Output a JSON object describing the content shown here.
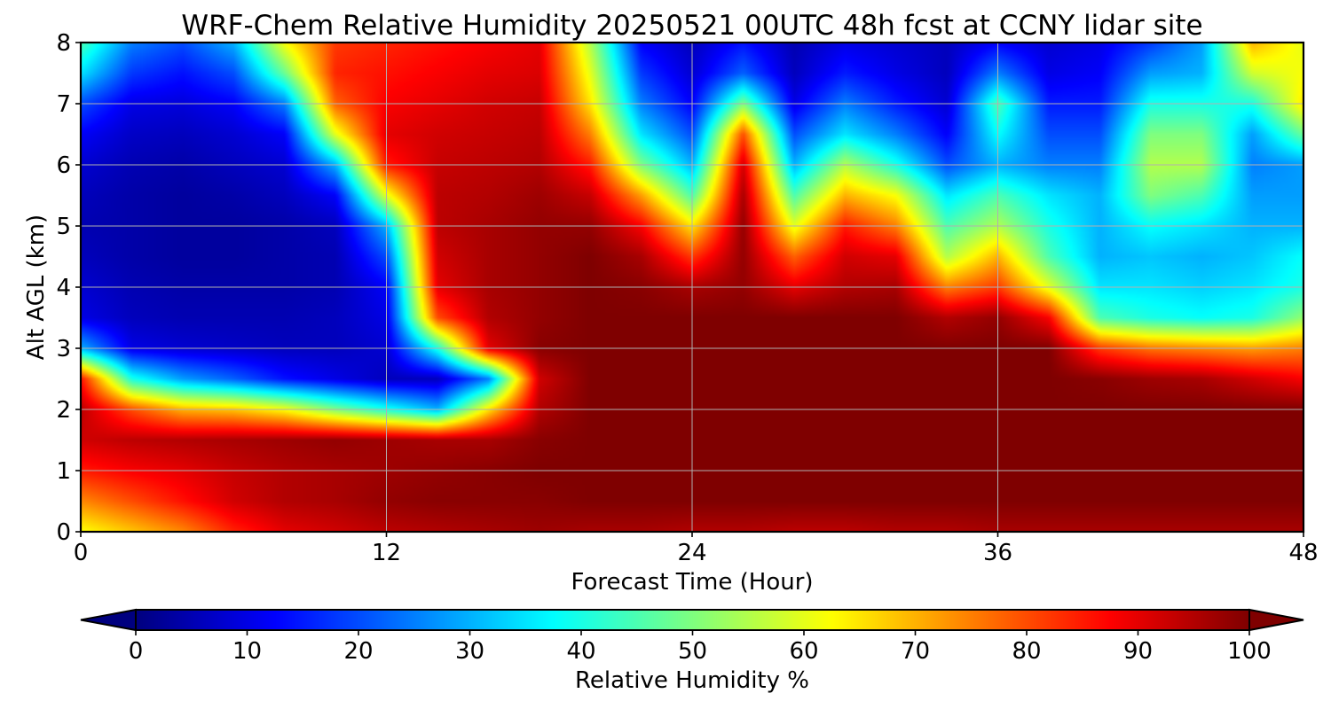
{
  "chart_data": {
    "type": "heatmap",
    "title": "WRF-Chem Relative Humidity 20250521 00UTC 48h fcst at CCNY lidar site",
    "xlabel": "Forecast Time (Hour)",
    "ylabel": "Alt AGL (km)",
    "xlim": [
      0,
      48
    ],
    "ylim": [
      0,
      8
    ],
    "x_ticks": [
      0,
      12,
      24,
      36,
      48
    ],
    "y_ticks": [
      0,
      1,
      2,
      3,
      4,
      5,
      6,
      7,
      8
    ],
    "grid": true,
    "x_hours": [
      0,
      2,
      4,
      6,
      8,
      10,
      12,
      14,
      16,
      18,
      20,
      22,
      24,
      26,
      28,
      30,
      32,
      34,
      36,
      38,
      40,
      42,
      44,
      46,
      48
    ],
    "y_km": [
      0,
      0.5,
      1,
      1.5,
      2,
      2.5,
      3,
      3.5,
      4,
      4.5,
      5,
      5.5,
      6,
      6.5,
      7,
      7.5,
      8
    ],
    "values": [
      [
        62,
        68,
        74,
        84,
        90,
        92,
        94,
        95,
        96,
        97,
        96,
        96,
        95,
        95,
        94,
        94,
        95,
        95,
        96,
        96,
        96,
        96,
        96,
        96,
        96
      ],
      [
        74,
        80,
        86,
        92,
        95,
        96,
        98,
        99,
        99,
        99,
        100,
        100,
        100,
        100,
        100,
        100,
        100,
        100,
        100,
        100,
        100,
        100,
        100,
        100,
        100
      ],
      [
        85,
        88,
        90,
        93,
        95,
        96,
        97,
        98,
        99,
        100,
        100,
        100,
        100,
        100,
        100,
        100,
        100,
        100,
        100,
        100,
        100,
        100,
        100,
        100,
        100
      ],
      [
        92,
        94,
        95,
        96,
        97,
        98,
        97,
        96,
        96,
        99,
        100,
        100,
        100,
        100,
        100,
        100,
        100,
        100,
        100,
        100,
        100,
        100,
        100,
        100,
        100
      ],
      [
        94,
        80,
        70,
        68,
        62,
        50,
        40,
        30,
        65,
        95,
        100,
        100,
        100,
        100,
        100,
        100,
        100,
        100,
        100,
        100,
        100,
        100,
        100,
        100,
        100
      ],
      [
        86,
        40,
        28,
        22,
        14,
        10,
        6,
        6,
        25,
        92,
        100,
        100,
        100,
        100,
        100,
        100,
        100,
        100,
        100,
        100,
        99,
        97,
        96,
        92,
        88
      ],
      [
        30,
        10,
        8,
        7,
        6,
        6,
        8,
        40,
        90,
        99,
        100,
        100,
        100,
        100,
        100,
        100,
        100,
        100,
        100,
        100,
        82,
        76,
        74,
        72,
        75
      ],
      [
        10,
        6,
        5,
        5,
        5,
        6,
        10,
        80,
        95,
        98,
        100,
        100,
        100,
        100,
        100,
        100,
        100,
        95,
        98,
        88,
        45,
        40,
        38,
        40,
        52
      ],
      [
        8,
        5,
        4,
        4,
        4,
        5,
        12,
        90,
        96,
        98,
        100,
        99,
        96,
        98,
        90,
        95,
        96,
        75,
        82,
        60,
        35,
        35,
        33,
        35,
        40
      ],
      [
        6,
        4,
        3,
        3,
        4,
        5,
        20,
        92,
        96,
        98,
        100,
        96,
        82,
        98,
        78,
        92,
        90,
        55,
        70,
        45,
        30,
        32,
        30,
        32,
        38
      ],
      [
        5,
        4,
        3,
        3,
        4,
        6,
        30,
        94,
        96,
        98,
        98,
        88,
        65,
        98,
        60,
        85,
        75,
        45,
        55,
        40,
        30,
        38,
        35,
        30,
        30
      ],
      [
        6,
        4,
        3,
        4,
        6,
        12,
        60,
        94,
        95,
        97,
        93,
        72,
        45,
        96,
        45,
        70,
        62,
        35,
        45,
        35,
        30,
        50,
        45,
        28,
        28
      ],
      [
        8,
        5,
        4,
        6,
        8,
        30,
        85,
        93,
        94,
        95,
        85,
        50,
        30,
        92,
        30,
        55,
        40,
        20,
        30,
        25,
        25,
        55,
        55,
        25,
        28
      ],
      [
        12,
        7,
        6,
        8,
        12,
        60,
        90,
        92,
        93,
        94,
        75,
        35,
        20,
        80,
        20,
        35,
        25,
        12,
        38,
        20,
        20,
        50,
        50,
        28,
        48
      ],
      [
        20,
        10,
        9,
        12,
        25,
        78,
        88,
        90,
        92,
        93,
        65,
        25,
        12,
        50,
        10,
        25,
        15,
        8,
        45,
        15,
        15,
        40,
        40,
        40,
        65
      ],
      [
        35,
        18,
        14,
        20,
        48,
        84,
        86,
        88,
        90,
        91,
        60,
        18,
        8,
        22,
        6,
        15,
        10,
        6,
        25,
        10,
        12,
        28,
        30,
        58,
        62
      ],
      [
        45,
        25,
        20,
        30,
        62,
        82,
        84,
        86,
        88,
        90,
        55,
        12,
        6,
        14,
        5,
        10,
        8,
        6,
        12,
        8,
        10,
        18,
        28,
        70,
        60
      ]
    ],
    "colorbar": {
      "label": "Relative Humidity %",
      "range": [
        0,
        100
      ],
      "ticks": [
        0,
        10,
        20,
        30,
        40,
        50,
        60,
        70,
        80,
        90,
        100
      ],
      "extend": "both",
      "orientation": "horizontal",
      "position": "bottom"
    },
    "colormap": "jet",
    "jet_stops": [
      "#00007f",
      "#0000ff",
      "#007fff",
      "#00ffff",
      "#7fff7f",
      "#ffff00",
      "#ff7f00",
      "#ff0000",
      "#7f0000"
    ]
  }
}
